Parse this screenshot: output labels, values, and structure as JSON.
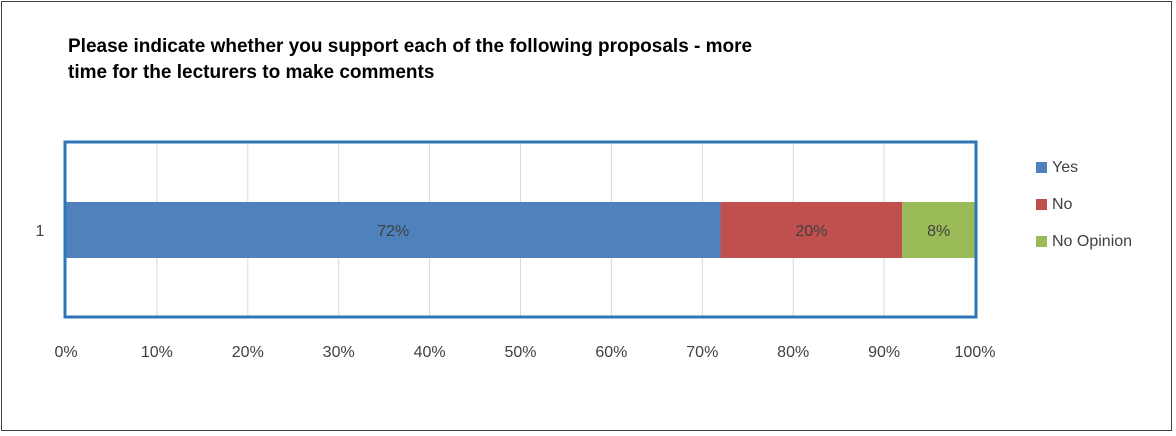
{
  "chart_data": {
    "type": "bar",
    "orientation": "horizontal",
    "stacked": "100%",
    "title": "Please indicate whether you support each of the following proposals - more time for the lecturers to make comments",
    "title_lines": [
      "Please indicate whether you support each of the following proposals - more",
      "time for the lecturers to make comments"
    ],
    "categories": [
      "1"
    ],
    "series": [
      {
        "name": "Yes",
        "values": [
          72
        ],
        "label": "72%",
        "color": "#4F81BD"
      },
      {
        "name": "No",
        "values": [
          20
        ],
        "label": "20%",
        "color": "#C0504D"
      },
      {
        "name": "No Opinion",
        "values": [
          8
        ],
        "label": "8%",
        "color": "#9BBB59"
      }
    ],
    "xlim": [
      0,
      100
    ],
    "xticks": [
      "0%",
      "10%",
      "20%",
      "30%",
      "40%",
      "50%",
      "60%",
      "70%",
      "80%",
      "90%",
      "100%"
    ],
    "grid": true,
    "legend": "right",
    "plot_border_color": "#2E75B6"
  }
}
